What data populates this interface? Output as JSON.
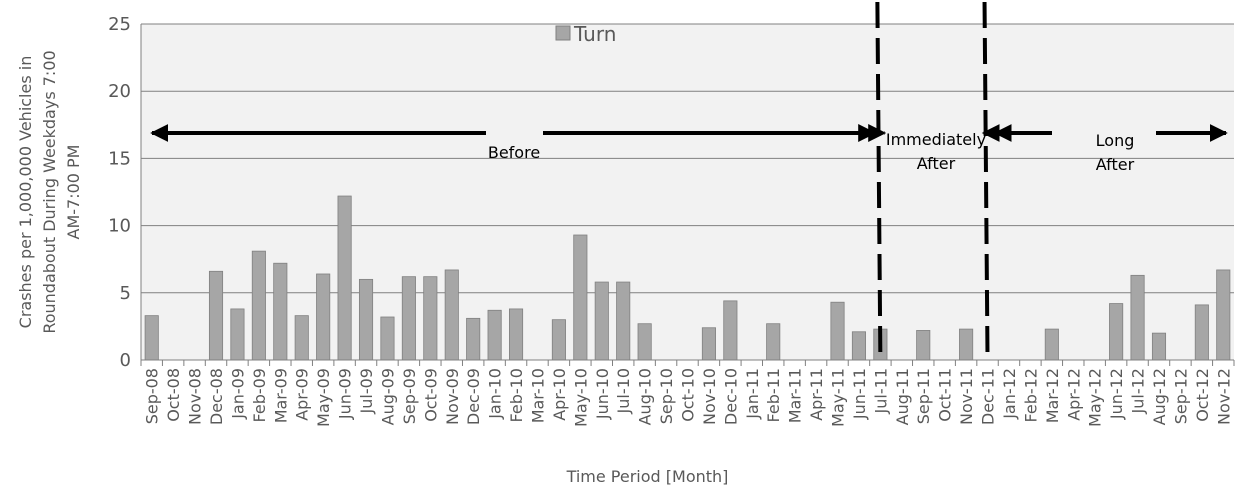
{
  "chart_data": {
    "type": "bar",
    "title": "",
    "xlabel": "Time Period [Month]",
    "ylabel": "Crashes per 1,000,000 Vehicles in Roundabout During Weekdays 7:00 AM-7:00 PM",
    "ylabel_lines": [
      "Crashes per 1,000,000 Vehicles in",
      "Roundabout During Weekdays 7:00",
      "AM-7:00 PM"
    ],
    "ylim": [
      0,
      25
    ],
    "yticks": [
      0,
      5,
      10,
      15,
      20,
      25
    ],
    "grid": true,
    "legend": {
      "position": "top-center",
      "entries": [
        "Turn"
      ]
    },
    "categories": [
      "Sep-08",
      "Oct-08",
      "Nov-08",
      "Dec-08",
      "Jan-09",
      "Feb-09",
      "Mar-09",
      "Apr-09",
      "May-09",
      "Jun-09",
      "Jul-09",
      "Aug-09",
      "Sep-09",
      "Oct-09",
      "Nov-09",
      "Dec-09",
      "Jan-10",
      "Feb-10",
      "Mar-10",
      "Apr-10",
      "May-10",
      "Jun-10",
      "Jul-10",
      "Aug-10",
      "Sep-10",
      "Oct-10",
      "Nov-10",
      "Dec-10",
      "Jan-11",
      "Feb-11",
      "Mar-11",
      "Apr-11",
      "May-11",
      "Jun-11",
      "Jul-11",
      "Aug-11",
      "Sep-11",
      "Oct-11",
      "Nov-11",
      "Dec-11",
      "Jan-12",
      "Feb-12",
      "Mar-12",
      "Apr-12",
      "May-12",
      "Jun-12",
      "Jul-12",
      "Aug-12",
      "Sep-12",
      "Oct-12",
      "Nov-12"
    ],
    "series": [
      {
        "name": "Turn",
        "color": "#a6a6a6",
        "values": [
          3.3,
          0,
          0,
          6.6,
          3.8,
          8.1,
          7.2,
          3.3,
          6.4,
          12.2,
          6.0,
          3.2,
          6.2,
          6.2,
          6.7,
          3.1,
          3.7,
          3.8,
          0,
          3.0,
          9.3,
          5.8,
          5.8,
          2.7,
          0,
          0,
          2.4,
          4.4,
          0,
          2.7,
          0,
          0,
          4.3,
          2.1,
          2.3,
          0,
          2.2,
          0,
          2.3,
          0,
          0,
          0,
          2.3,
          0,
          0,
          4.2,
          6.3,
          2.0,
          0,
          4.1,
          6.7
        ]
      }
    ],
    "periods": [
      {
        "name": "Before",
        "label_lines": [
          "Before"
        ],
        "start": "Sep-08",
        "end": "Jun-11"
      },
      {
        "name": "Immediately After",
        "label_lines": [
          "Immediately",
          "After"
        ],
        "start": "Jul-11",
        "end": "Dec-11"
      },
      {
        "name": "Long After",
        "label_lines": [
          "Long",
          "After"
        ],
        "start": "Jan-12",
        "end": "Nov-12"
      }
    ],
    "period_boundaries": [
      "Jul-11",
      "Dec-11"
    ],
    "colors": {
      "plot_background": "#f2f2f2",
      "gridline": "#808080",
      "bar_fill": "#a6a6a6",
      "bar_stroke": "#808080",
      "axis_text": "#595959",
      "annotation": "#000000"
    }
  }
}
